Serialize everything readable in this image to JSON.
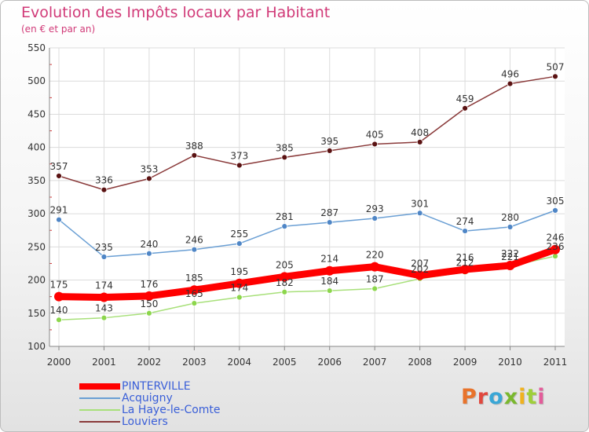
{
  "title": "Evolution des Impôts locaux par Habitant",
  "subtitle": "(en € et par an)",
  "brand": {
    "text": "Proxiti",
    "letter_colors": [
      "#e8732b",
      "#e0483e",
      "#3aa7d6",
      "#7ab82e",
      "#f0b21e",
      "#9fcf3a",
      "#e35c9a"
    ]
  },
  "chart_data": {
    "type": "line",
    "title": "Evolution des Impôts locaux par Habitant",
    "subtitle": "(en € et par an)",
    "xlabel": "",
    "ylabel": "",
    "x": [
      "2000",
      "2001",
      "2002",
      "2003",
      "2004",
      "2005",
      "2006",
      "2007",
      "2008",
      "2009",
      "2010",
      "2011"
    ],
    "ylim": [
      100,
      550
    ],
    "yticks": [
      "100",
      "150",
      "200",
      "250",
      "300",
      "350",
      "400",
      "450",
      "500",
      "550"
    ],
    "grid": true,
    "legend_position": "bottom-left",
    "series": [
      {
        "name": "PINTERVILLE",
        "color": "#ff0000",
        "values": [
          175,
          174,
          176,
          185,
          195,
          205,
          214,
          220,
          207,
          216,
          222,
          246
        ],
        "labels": [
          "175",
          "174",
          "176",
          "185",
          "195",
          "205",
          "214",
          "220",
          "207",
          "216",
          "222",
          "246"
        ]
      },
      {
        "name": "Acquigny",
        "color": "#6a9fd4",
        "values": [
          291,
          235,
          240,
          246,
          255,
          281,
          287,
          293,
          301,
          274,
          280,
          305
        ],
        "labels": [
          "291",
          "235",
          "240",
          "246",
          "255",
          "281",
          "287",
          "293",
          "301",
          "274",
          "280",
          "305"
        ]
      },
      {
        "name": "La Haye-le-Comte",
        "color": "#a8e07a",
        "values": [
          140,
          143,
          150,
          165,
          174,
          182,
          184,
          187,
          202,
          212,
          221,
          236
        ],
        "labels": [
          "140",
          "143",
          "150",
          "165",
          "174",
          "182",
          "184",
          "187",
          "202",
          "212",
          "221",
          "236"
        ]
      },
      {
        "name": "Louviers",
        "color": "#8a3a3a",
        "values": [
          357,
          336,
          353,
          388,
          373,
          385,
          395,
          405,
          408,
          459,
          496,
          507
        ],
        "labels": [
          "357",
          "336",
          "353",
          "388",
          "373",
          "385",
          "395",
          "405",
          "408",
          "459",
          "496",
          "507"
        ]
      }
    ]
  }
}
